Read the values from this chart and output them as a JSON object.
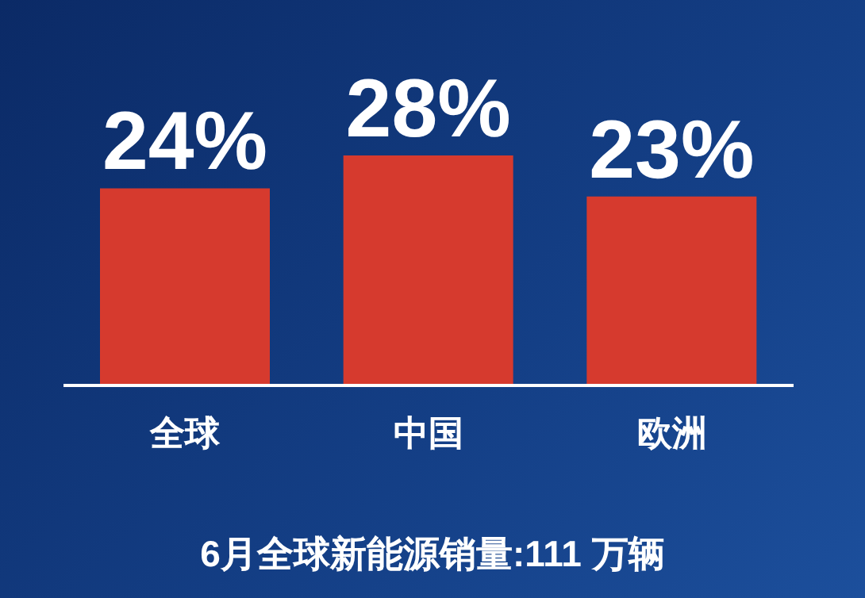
{
  "chart_data": {
    "type": "bar",
    "categories": [
      "全球",
      "中国",
      "欧洲"
    ],
    "values": [
      24,
      28,
      23
    ],
    "value_labels": [
      "24%",
      "28%",
      "23%"
    ],
    "color": "#d63a2e",
    "annotations": [
      "6月全球新能源销量:111 万辆"
    ]
  }
}
